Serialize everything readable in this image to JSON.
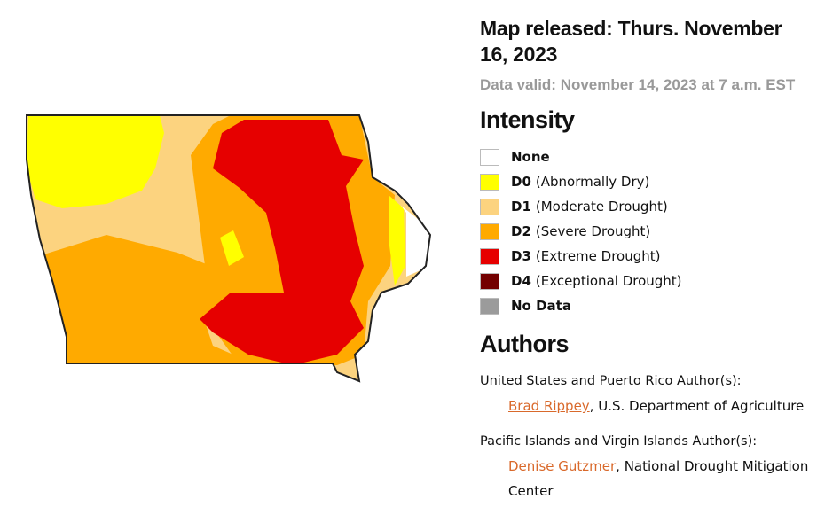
{
  "header": {
    "title": "Map released: Thurs. November 16, 2023",
    "subtitle": "Data valid: November 14, 2023 at 7 a.m. EST"
  },
  "legend": {
    "heading": "Intensity",
    "items": [
      {
        "label": "None",
        "color": "#ffffff"
      },
      {
        "code": "D0",
        "description": "(Abnormally Dry)",
        "color": "#ffff00"
      },
      {
        "code": "D1",
        "description": "(Moderate Drought)",
        "color": "#fcd37f"
      },
      {
        "code": "D2",
        "description": "(Severe Drought)",
        "color": "#ffaa00"
      },
      {
        "code": "D3",
        "description": "(Extreme Drought)",
        "color": "#e60000"
      },
      {
        "code": "D4",
        "description": "(Exceptional Drought)",
        "color": "#730000"
      },
      {
        "label": "No Data",
        "color": "#9b9b9b"
      }
    ]
  },
  "authors": {
    "heading": "Authors",
    "groups": [
      {
        "heading": "United States and Puerto Rico Author(s):",
        "authors": [
          {
            "name": "Brad Rippey",
            "affiliation": ", U.S. Department of Agriculture"
          }
        ]
      },
      {
        "heading": "Pacific Islands and Virgin Islands Author(s):",
        "authors": [
          {
            "name": "Denise Gutzmer",
            "affiliation": ", National Drought Mitigation Center"
          }
        ]
      }
    ]
  }
}
